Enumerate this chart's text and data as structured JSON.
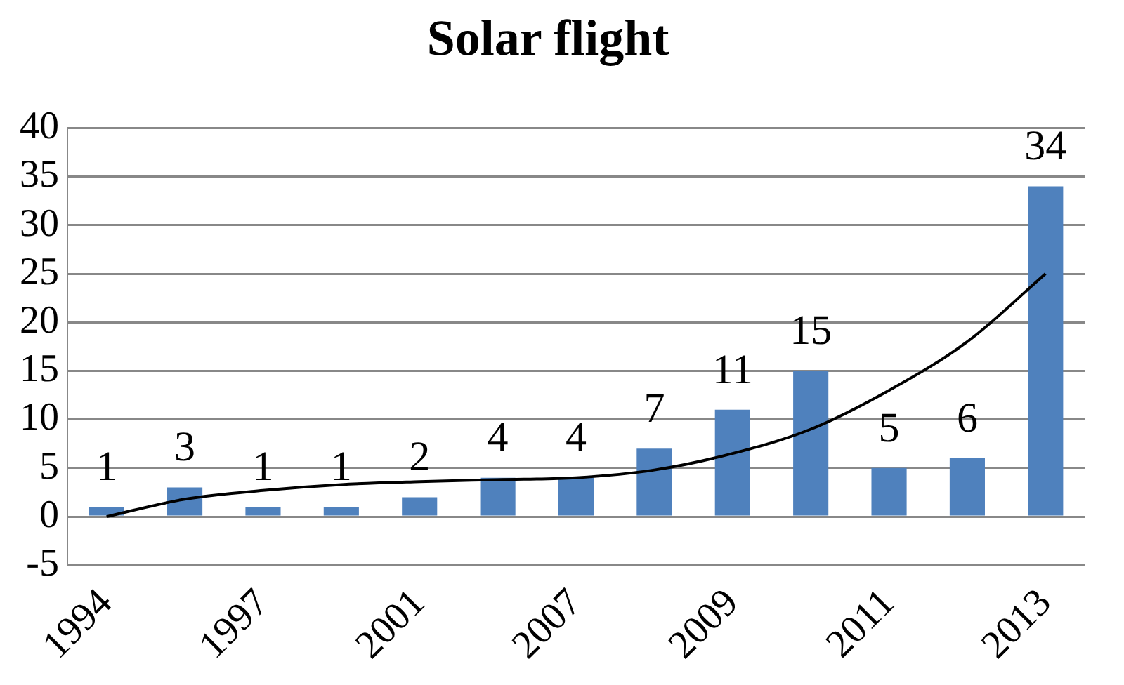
{
  "chart_data": {
    "type": "bar",
    "title": "Solar flight",
    "categories": [
      "1994",
      null,
      "1997",
      null,
      "2001",
      null,
      "2007",
      null,
      "2009",
      null,
      "2011",
      null,
      "2013"
    ],
    "series": [
      {
        "color": "#4f81bd",
        "values": [
          1,
          3,
          1,
          1,
          2,
          4,
          4,
          7,
          11,
          15,
          5,
          6,
          34
        ],
        "value_labels": [
          "1",
          "3",
          "1",
          "1",
          "2",
          "4",
          "4",
          "7",
          "11",
          "15",
          "5",
          "6",
          "34"
        ]
      },
      {
        "type": "line",
        "color": "#000000",
        "values": [
          0,
          1.8,
          2.7,
          3.3,
          3.6,
          3.8,
          4,
          4.8,
          6.5,
          9,
          13,
          18,
          25
        ]
      }
    ],
    "ylim": [
      -5,
      40
    ],
    "yticks": [
      -5,
      0,
      5,
      10,
      15,
      20,
      25,
      30,
      35,
      40
    ],
    "grid": "y",
    "legend": false,
    "marker": "none",
    "line_style": "solid"
  }
}
